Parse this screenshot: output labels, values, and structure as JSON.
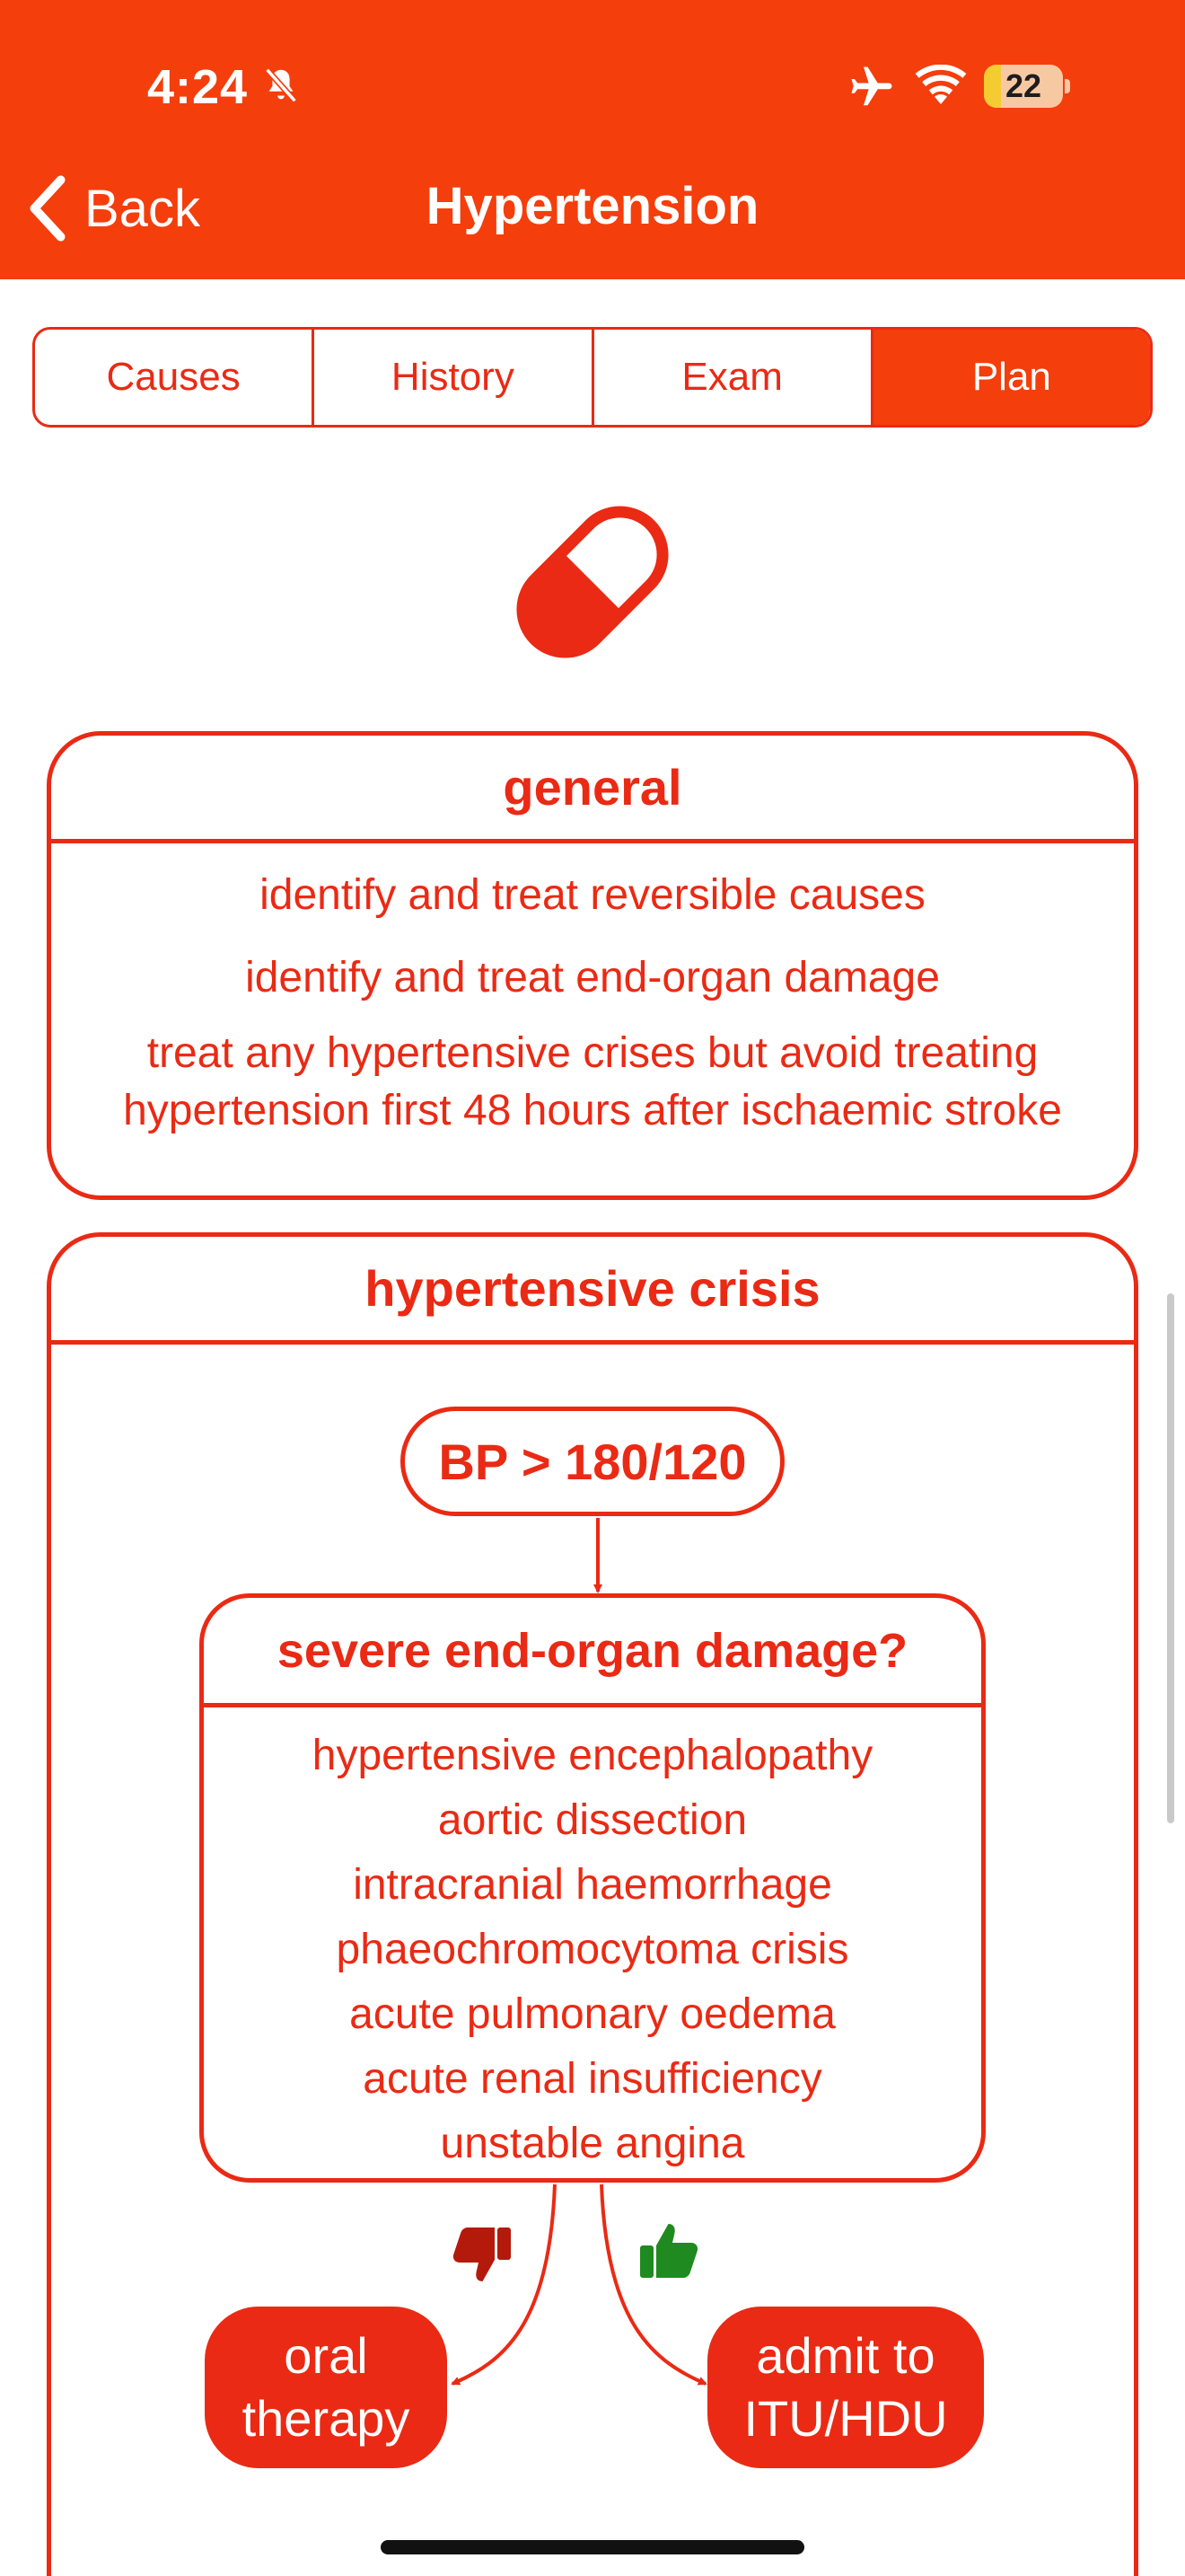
{
  "status_bar": {
    "time": "4:24",
    "battery_level": 22,
    "battery_text": "22"
  },
  "nav": {
    "back_label": "Back",
    "title": "Hypertension"
  },
  "tabs": [
    {
      "label": "Causes",
      "active": false
    },
    {
      "label": "History",
      "active": false
    },
    {
      "label": "Exam",
      "active": false
    },
    {
      "label": "Plan",
      "active": true
    }
  ],
  "general": {
    "heading": "general",
    "items": [
      "identify and treat reversible causes",
      "identify and treat end-organ damage",
      "treat any hypertensive crises but avoid treating",
      "hypertension first 48 hours after ischaemic stroke"
    ]
  },
  "crisis": {
    "heading": "hypertensive crisis",
    "bp_label": "BP > 180/120",
    "question": "severe end-organ damage?",
    "conditions": [
      "hypertensive encephalopathy",
      "aortic dissection",
      "intracranial haemorrhage",
      "phaeochromocytoma crisis",
      "acute pulmonary oedema",
      "acute renal insufficiency",
      "unstable angina"
    ],
    "no_outcome": [
      "oral",
      "therapy"
    ],
    "yes_outcome": [
      "admit to",
      "ITU/HDU"
    ]
  },
  "colors": {
    "header": "#f43e0c",
    "accent": "#ea2a14",
    "thumb_down": "#b31a0c",
    "thumb_up": "#1f8a1f"
  },
  "icons": [
    "bell-slash-icon",
    "airplane-icon",
    "wifi-icon",
    "battery-icon",
    "chevron-left-icon",
    "pill-icon",
    "thumbs-down-icon",
    "thumbs-up-icon"
  ]
}
